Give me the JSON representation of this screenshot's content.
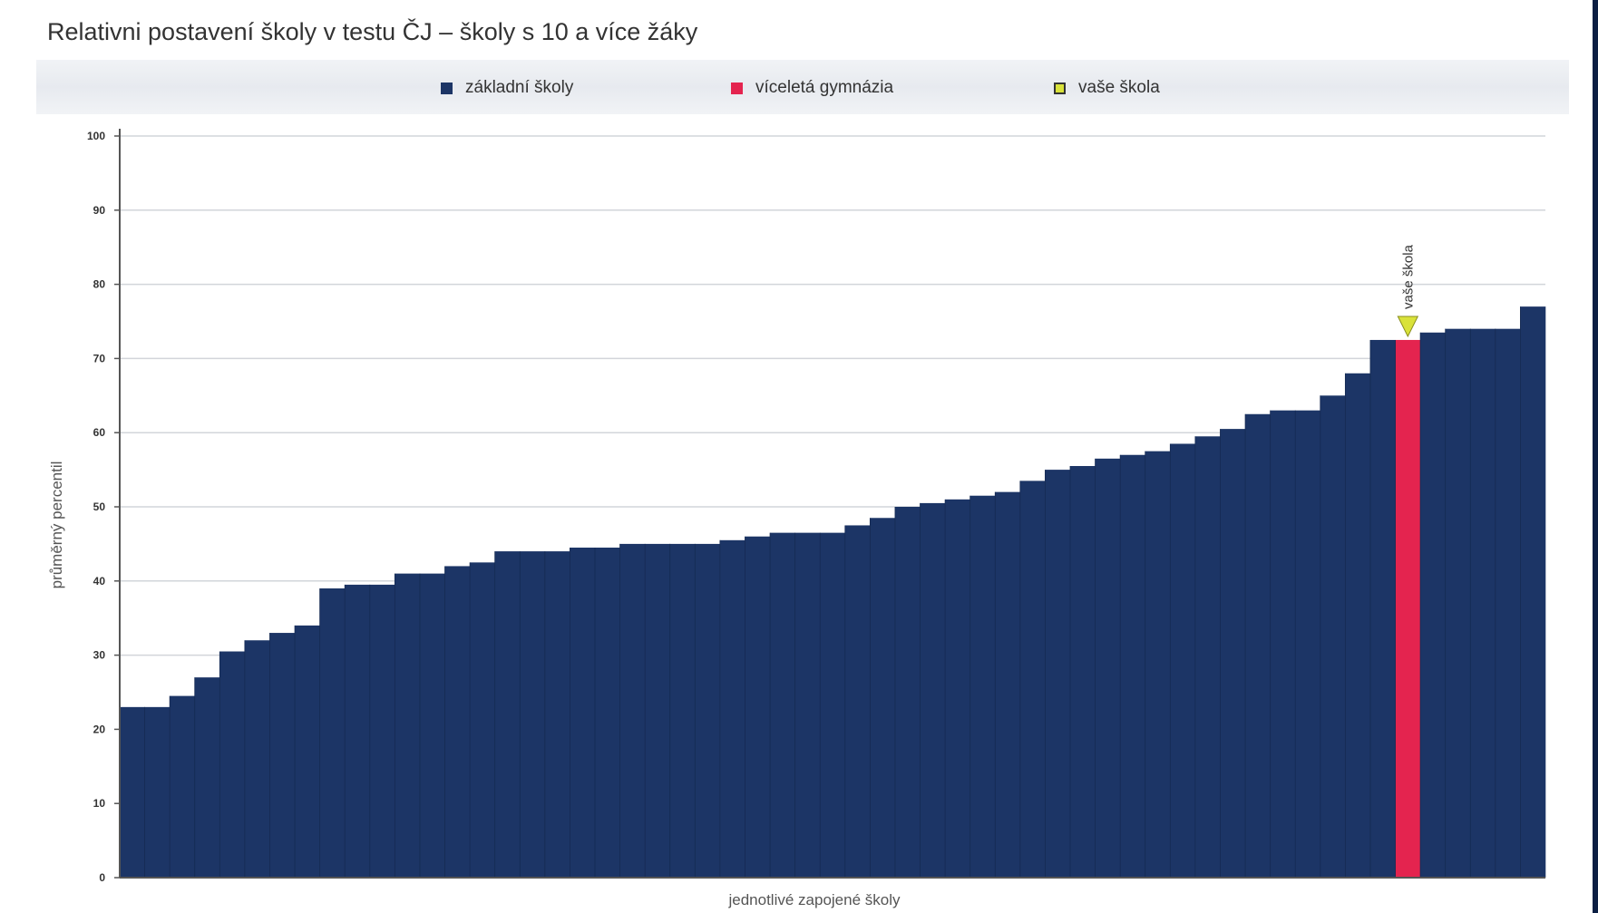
{
  "chart_data": {
    "type": "bar",
    "title": "Relativni postavení školy v testu ČJ – školy s 10 a více žáky",
    "ylabel": "průměrný percentil",
    "xlabel": "jednotlivé zapojené školy",
    "ylim": [
      0,
      100
    ],
    "yticks": [
      0,
      10,
      20,
      30,
      40,
      50,
      60,
      70,
      80,
      90,
      100
    ],
    "grid": true,
    "legend_position": "top",
    "legend": [
      {
        "name": "základní školy",
        "color": "#1c3566",
        "shape": "square"
      },
      {
        "name": "víceletá gymnázia",
        "color": "#e4244f",
        "shape": "square"
      },
      {
        "name": "vaše škola",
        "color": "#d9e23a",
        "shape": "square"
      }
    ],
    "values": [
      23,
      23,
      24.5,
      27,
      30.5,
      32,
      33,
      34,
      39,
      39.5,
      39.5,
      41,
      41,
      42,
      42.5,
      44,
      44,
      44,
      44.5,
      44.5,
      45,
      45,
      45,
      45,
      45.5,
      46,
      46.5,
      46.5,
      46.5,
      47.5,
      48.5,
      50,
      50.5,
      51,
      51.5,
      52,
      53.5,
      55,
      55.5,
      56.5,
      57,
      57.5,
      58.5,
      59.5,
      60.5,
      62.5,
      63,
      63,
      65,
      68,
      72.5,
      72.5,
      73.5,
      74,
      74,
      74,
      77
    ],
    "highlight_index": 51,
    "marker_label": "vaše škola",
    "colors": {
      "default": "#1c3566",
      "highlight": "#e4244f",
      "marker": "#d9e23a"
    }
  }
}
